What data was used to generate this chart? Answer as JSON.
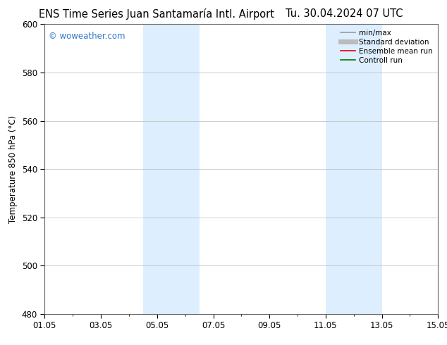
{
  "title_left": "ENS Time Series Juan Santamaría Intl. Airport",
  "title_right": "Tu. 30.04.2024 07 UTC",
  "ylabel": "Temperature 850 hPa (°C)",
  "ylim": [
    480,
    600
  ],
  "yticks": [
    480,
    500,
    520,
    540,
    560,
    580,
    600
  ],
  "xlim_start": 0,
  "xlim_end": 14,
  "xtick_labels": [
    "01.05",
    "03.05",
    "05.05",
    "07.05",
    "09.05",
    "11.05",
    "13.05",
    "15.05"
  ],
  "xtick_positions": [
    0,
    2,
    4,
    6,
    8,
    10,
    12,
    14
  ],
  "shaded_bands": [
    {
      "x_start": 3.5,
      "x_end": 5.5,
      "color": "#ddeeff"
    },
    {
      "x_start": 10.0,
      "x_end": 12.0,
      "color": "#ddeeff"
    }
  ],
  "watermark_text": "© woweather.com",
  "watermark_color": "#3377cc",
  "legend_items": [
    {
      "label": "min/max",
      "color": "#999999",
      "lw": 1.2,
      "style": "-"
    },
    {
      "label": "Standard deviation",
      "color": "#bbbbbb",
      "lw": 5,
      "style": "-"
    },
    {
      "label": "Ensemble mean run",
      "color": "#dd0000",
      "lw": 1.2,
      "style": "-"
    },
    {
      "label": "Controll run",
      "color": "#007700",
      "lw": 1.2,
      "style": "-"
    }
  ],
  "bg_color": "#ffffff",
  "plot_bg_color": "#ffffff",
  "grid_color": "#bbbbbb",
  "title_fontsize": 10.5,
  "tick_fontsize": 8.5,
  "ylabel_fontsize": 8.5,
  "watermark_fontsize": 8.5,
  "legend_fontsize": 7.5
}
